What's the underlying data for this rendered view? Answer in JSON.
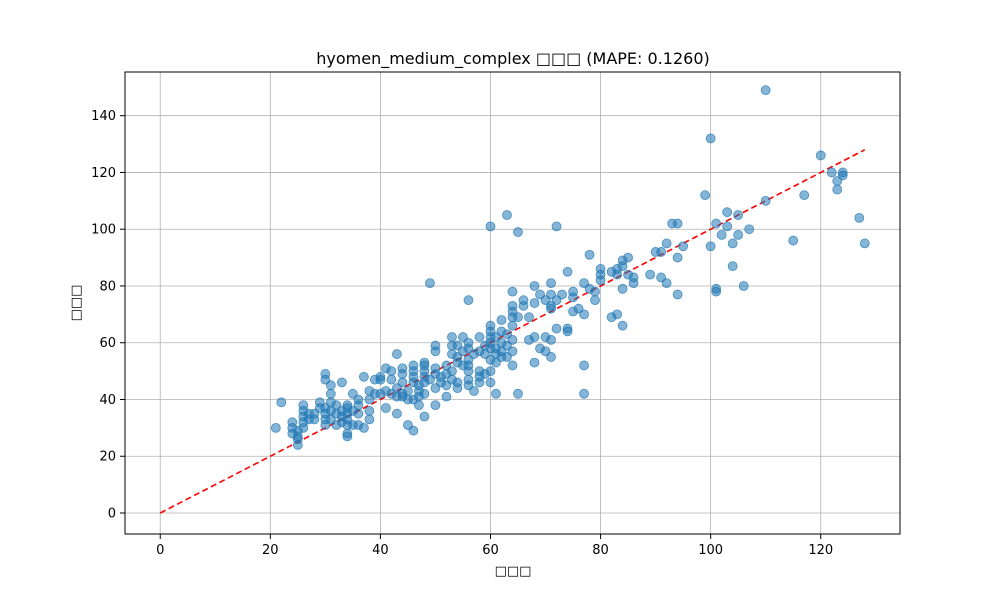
{
  "chart_data": {
    "type": "scatter",
    "title": "hyomen_medium_complex □□□ (MAPE: 0.1260)",
    "xlabel": "□□□",
    "ylabel": "□□□",
    "xlim": [
      -6.4,
      134.4
    ],
    "ylim": [
      -7.4,
      155.4
    ],
    "xticks": [
      0,
      20,
      40,
      60,
      80,
      100,
      120
    ],
    "yticks": [
      0,
      20,
      40,
      60,
      80,
      100,
      120,
      140
    ],
    "grid": true,
    "point_color": "#1f77b4",
    "point_opacity": 0.55,
    "reference_line": {
      "x": [
        0,
        128
      ],
      "y": [
        0,
        128
      ],
      "color": "#ff0000",
      "style": "dashed"
    },
    "points": [
      [
        21,
        30
      ],
      [
        22,
        39
      ],
      [
        24,
        28
      ],
      [
        24,
        30
      ],
      [
        24,
        32
      ],
      [
        25,
        26
      ],
      [
        25,
        24
      ],
      [
        25,
        27
      ],
      [
        25,
        29
      ],
      [
        26,
        30
      ],
      [
        26,
        32
      ],
      [
        26,
        34
      ],
      [
        26,
        36
      ],
      [
        26,
        38
      ],
      [
        27,
        33
      ],
      [
        27,
        35
      ],
      [
        28,
        33
      ],
      [
        28,
        35
      ],
      [
        29,
        37
      ],
      [
        29,
        39
      ],
      [
        30,
        33
      ],
      [
        30,
        35
      ],
      [
        30,
        37
      ],
      [
        30,
        47
      ],
      [
        30,
        49
      ],
      [
        30,
        31
      ],
      [
        31,
        33
      ],
      [
        31,
        36
      ],
      [
        31,
        45
      ],
      [
        31,
        39
      ],
      [
        31,
        42
      ],
      [
        32,
        31
      ],
      [
        32,
        35
      ],
      [
        32,
        38
      ],
      [
        33,
        32
      ],
      [
        33,
        34
      ],
      [
        33,
        36
      ],
      [
        33,
        46
      ],
      [
        34,
        27
      ],
      [
        34,
        28
      ],
      [
        34,
        31
      ],
      [
        34,
        33
      ],
      [
        34,
        35
      ],
      [
        34,
        37
      ],
      [
        34,
        38
      ],
      [
        35,
        36
      ],
      [
        35,
        42
      ],
      [
        35,
        31
      ],
      [
        36,
        38
      ],
      [
        36,
        35
      ],
      [
        36,
        40
      ],
      [
        36,
        31
      ],
      [
        37,
        30
      ],
      [
        37,
        48
      ],
      [
        38,
        36
      ],
      [
        38,
        33
      ],
      [
        38,
        43
      ],
      [
        38,
        40
      ],
      [
        39,
        42
      ],
      [
        39,
        47
      ],
      [
        40,
        42
      ],
      [
        40,
        47
      ],
      [
        40,
        48
      ],
      [
        41,
        37
      ],
      [
        41,
        51
      ],
      [
        41,
        43
      ],
      [
        42,
        42
      ],
      [
        42,
        47
      ],
      [
        42,
        50
      ],
      [
        43,
        41
      ],
      [
        43,
        44
      ],
      [
        43,
        56
      ],
      [
        43,
        35
      ],
      [
        44,
        41
      ],
      [
        44,
        42
      ],
      [
        44,
        46
      ],
      [
        44,
        49
      ],
      [
        44,
        51
      ],
      [
        45,
        31
      ],
      [
        45,
        40
      ],
      [
        45,
        43
      ],
      [
        46,
        29
      ],
      [
        46,
        40
      ],
      [
        46,
        46
      ],
      [
        46,
        48
      ],
      [
        46,
        50
      ],
      [
        46,
        52
      ],
      [
        47,
        38
      ],
      [
        47,
        41
      ],
      [
        47,
        43
      ],
      [
        47,
        45
      ],
      [
        48,
        34
      ],
      [
        48,
        42
      ],
      [
        48,
        46
      ],
      [
        48,
        48
      ],
      [
        48,
        50
      ],
      [
        48,
        52
      ],
      [
        48,
        53
      ],
      [
        49,
        81
      ],
      [
        49,
        47
      ],
      [
        50,
        38
      ],
      [
        50,
        44
      ],
      [
        50,
        49
      ],
      [
        50,
        51
      ],
      [
        50,
        57
      ],
      [
        50,
        59
      ],
      [
        51,
        46
      ],
      [
        51,
        48
      ],
      [
        52,
        41
      ],
      [
        52,
        45
      ],
      [
        52,
        49
      ],
      [
        52,
        52
      ],
      [
        53,
        47
      ],
      [
        53,
        50
      ],
      [
        53,
        56
      ],
      [
        53,
        59
      ],
      [
        53,
        62
      ],
      [
        54,
        44
      ],
      [
        54,
        46
      ],
      [
        54,
        53
      ],
      [
        54,
        55
      ],
      [
        54,
        59
      ],
      [
        55,
        52
      ],
      [
        55,
        57
      ],
      [
        55,
        62
      ],
      [
        56,
        75
      ],
      [
        56,
        45
      ],
      [
        56,
        47
      ],
      [
        56,
        50
      ],
      [
        56,
        52
      ],
      [
        56,
        54
      ],
      [
        56,
        58
      ],
      [
        56,
        60
      ],
      [
        57,
        43
      ],
      [
        57,
        56
      ],
      [
        58,
        46
      ],
      [
        58,
        48
      ],
      [
        58,
        50
      ],
      [
        58,
        57
      ],
      [
        58,
        62
      ],
      [
        59,
        49
      ],
      [
        59,
        56
      ],
      [
        59,
        59
      ],
      [
        60,
        46
      ],
      [
        60,
        50
      ],
      [
        60,
        54
      ],
      [
        60,
        58
      ],
      [
        60,
        60
      ],
      [
        60,
        62
      ],
      [
        60,
        64
      ],
      [
        60,
        66
      ],
      [
        60,
        101
      ],
      [
        61,
        42
      ],
      [
        61,
        53
      ],
      [
        61,
        56
      ],
      [
        61,
        58
      ],
      [
        61,
        62
      ],
      [
        62,
        55
      ],
      [
        62,
        57
      ],
      [
        62,
        60
      ],
      [
        62,
        64
      ],
      [
        62,
        68
      ],
      [
        63,
        105
      ],
      [
        63,
        55
      ],
      [
        63,
        59
      ],
      [
        63,
        63
      ],
      [
        64,
        52
      ],
      [
        64,
        57
      ],
      [
        64,
        61
      ],
      [
        64,
        66
      ],
      [
        64,
        69
      ],
      [
        64,
        71
      ],
      [
        64,
        73
      ],
      [
        64,
        78
      ],
      [
        65,
        99
      ],
      [
        65,
        42
      ],
      [
        65,
        69
      ],
      [
        66,
        75
      ],
      [
        66,
        73
      ],
      [
        67,
        61
      ],
      [
        67,
        69
      ],
      [
        68,
        62
      ],
      [
        68,
        53
      ],
      [
        68,
        74
      ],
      [
        68,
        80
      ],
      [
        69,
        58
      ],
      [
        69,
        77
      ],
      [
        70,
        57
      ],
      [
        70,
        62
      ],
      [
        70,
        75
      ],
      [
        71,
        81
      ],
      [
        71,
        77
      ],
      [
        71,
        73
      ],
      [
        71,
        72
      ],
      [
        71,
        55
      ],
      [
        71,
        61
      ],
      [
        72,
        101
      ],
      [
        72,
        65
      ],
      [
        72,
        75
      ],
      [
        73,
        77
      ],
      [
        74,
        85
      ],
      [
        74,
        64
      ],
      [
        74,
        65
      ],
      [
        75,
        76
      ],
      [
        75,
        71
      ],
      [
        75,
        78
      ],
      [
        76,
        72
      ],
      [
        77,
        81
      ],
      [
        77,
        70
      ],
      [
        77,
        52
      ],
      [
        77,
        42
      ],
      [
        78,
        91
      ],
      [
        78,
        79
      ],
      [
        79,
        78
      ],
      [
        79,
        75
      ],
      [
        80,
        86
      ],
      [
        80,
        84
      ],
      [
        80,
        82
      ],
      [
        82,
        85
      ],
      [
        82,
        69
      ],
      [
        83,
        70
      ],
      [
        83,
        84
      ],
      [
        83,
        86
      ],
      [
        84,
        79
      ],
      [
        84,
        87
      ],
      [
        84,
        89
      ],
      [
        84,
        66
      ],
      [
        85,
        84
      ],
      [
        85,
        90
      ],
      [
        86,
        81
      ],
      [
        86,
        83
      ],
      [
        89,
        84
      ],
      [
        90,
        92
      ],
      [
        91,
        83
      ],
      [
        91,
        92
      ],
      [
        92,
        81
      ],
      [
        92,
        95
      ],
      [
        93,
        102
      ],
      [
        94,
        102
      ],
      [
        94,
        90
      ],
      [
        94,
        77
      ],
      [
        95,
        94
      ],
      [
        99,
        112
      ],
      [
        100,
        132
      ],
      [
        100,
        94
      ],
      [
        101,
        102
      ],
      [
        101,
        79
      ],
      [
        101,
        78
      ],
      [
        102,
        98
      ],
      [
        103,
        106
      ],
      [
        103,
        101
      ],
      [
        104,
        95
      ],
      [
        104,
        87
      ],
      [
        105,
        98
      ],
      [
        105,
        105
      ],
      [
        106,
        80
      ],
      [
        107,
        100
      ],
      [
        110,
        149
      ],
      [
        110,
        110
      ],
      [
        115,
        96
      ],
      [
        117,
        112
      ],
      [
        120,
        126
      ],
      [
        122,
        120
      ],
      [
        123,
        117
      ],
      [
        123,
        114
      ],
      [
        124,
        120
      ],
      [
        124,
        119
      ],
      [
        127,
        104
      ],
      [
        128,
        95
      ]
    ]
  }
}
